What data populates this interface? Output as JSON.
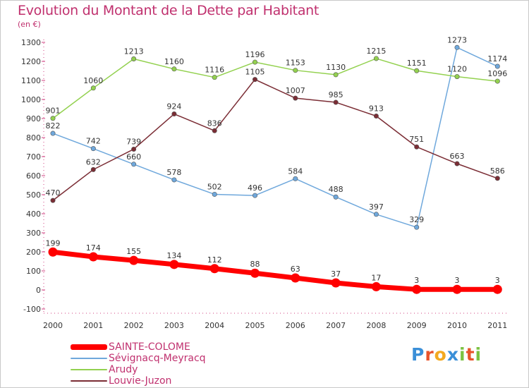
{
  "title": "Evolution du Montant de la Dette par Habitant",
  "unit": "(en €)",
  "brand": {
    "letters": [
      {
        "ch": "P",
        "color": "#3a8fd8"
      },
      {
        "ch": "r",
        "color": "#e8532a"
      },
      {
        "ch": "o",
        "color": "#f3a91f"
      },
      {
        "ch": "x",
        "color": "#3a8fd8"
      },
      {
        "ch": "i",
        "color": "#7cc242"
      },
      {
        "ch": "t",
        "color": "#e8532a"
      },
      {
        "ch": "i",
        "color": "#7cc242"
      }
    ]
  },
  "chart_data": {
    "type": "line",
    "title": "Evolution du Montant de la Dette par Habitant",
    "ylabel": "(en €)",
    "xlabel": "",
    "x": [
      "2000",
      "2001",
      "2002",
      "2003",
      "2004",
      "2005",
      "2006",
      "2007",
      "2008",
      "2009",
      "2010",
      "2011"
    ],
    "ylim": [
      -100,
      1300
    ],
    "yticks": [
      -100,
      0,
      100,
      200,
      300,
      400,
      500,
      600,
      700,
      800,
      900,
      1000,
      1100,
      1200,
      1300
    ],
    "grid": false,
    "legend_position": "bottom-left",
    "series": [
      {
        "name": "SAINTE-COLOME",
        "color": "#ff0000",
        "values": [
          199,
          174,
          155,
          134,
          112,
          88,
          63,
          37,
          17,
          3,
          3,
          3
        ]
      },
      {
        "name": "Sévignacq-Meyracq",
        "color": "#6fa8dc",
        "values": [
          822,
          742,
          660,
          578,
          502,
          496,
          584,
          488,
          397,
          329,
          1273,
          1174
        ]
      },
      {
        "name": "Arudy",
        "color": "#93d14f",
        "values": [
          901,
          1060,
          1213,
          1160,
          1116,
          1196,
          1153,
          1130,
          1215,
          1151,
          1120,
          1096
        ]
      },
      {
        "name": "Louvie-Juzon",
        "color": "#7b2d35",
        "values": [
          470,
          632,
          739,
          924,
          836,
          1105,
          1007,
          985,
          913,
          751,
          663,
          586
        ]
      }
    ]
  }
}
